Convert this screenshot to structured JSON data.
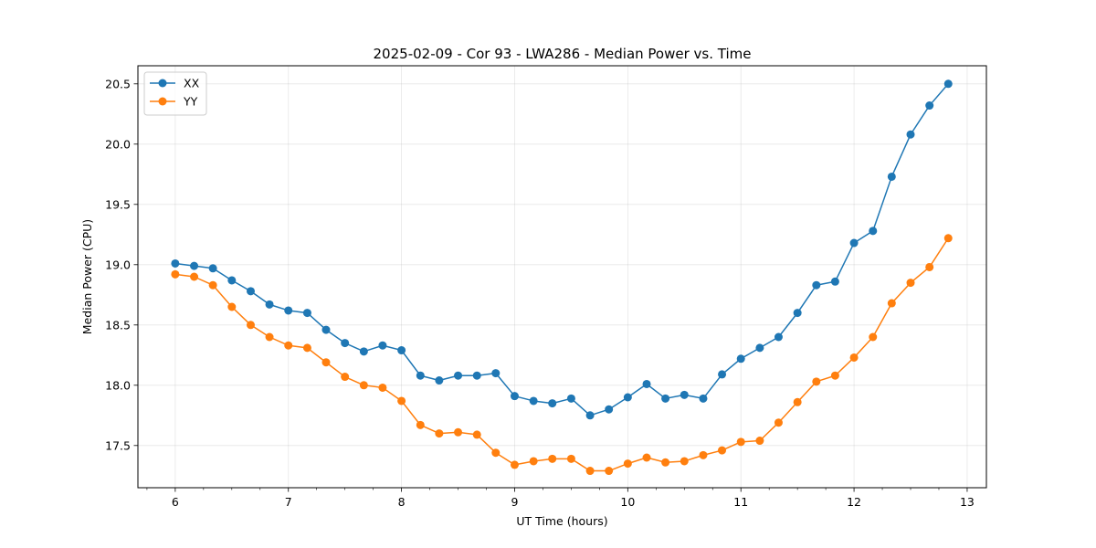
{
  "chart_data": {
    "type": "line",
    "title": "2025-02-09 - Cor 93 - LWA286 - Median Power vs. Time",
    "xlabel": "UT Time (hours)",
    "ylabel": "Median Power (CPU)",
    "xlim": [
      5.67,
      13.17
    ],
    "ylim": [
      17.15,
      20.65
    ],
    "xticks": [
      6,
      7,
      8,
      9,
      10,
      11,
      12,
      13
    ],
    "xtick_labels": [
      "6",
      "7",
      "8",
      "9",
      "10",
      "11",
      "12",
      "13"
    ],
    "yticks": [
      17.5,
      18.0,
      18.5,
      19.0,
      19.5,
      20.0,
      20.5
    ],
    "ytick_labels": [
      "17.5",
      "18.0",
      "18.5",
      "19.0",
      "19.5",
      "20.0",
      "20.5"
    ],
    "grid": true,
    "legend_position": "top-left",
    "x": [
      6.0,
      6.167,
      6.333,
      6.5,
      6.667,
      6.833,
      7.0,
      7.167,
      7.333,
      7.5,
      7.667,
      7.833,
      8.0,
      8.167,
      8.333,
      8.5,
      8.667,
      8.833,
      9.0,
      9.167,
      9.333,
      9.5,
      9.667,
      9.833,
      10.0,
      10.167,
      10.333,
      10.5,
      10.667,
      10.833,
      11.0,
      11.167,
      11.333,
      11.5,
      11.667,
      11.833,
      12.0,
      12.167,
      12.333,
      12.5,
      12.667,
      12.833
    ],
    "series": [
      {
        "name": "XX",
        "color": "#1f77b4",
        "values": [
          19.01,
          18.99,
          18.97,
          18.87,
          18.78,
          18.67,
          18.62,
          18.6,
          18.46,
          18.35,
          18.28,
          18.33,
          18.29,
          18.08,
          18.04,
          18.08,
          18.08,
          18.1,
          17.91,
          17.87,
          17.85,
          17.89,
          17.75,
          17.8,
          17.9,
          18.01,
          17.89,
          17.92,
          17.89,
          18.09,
          18.22,
          18.31,
          18.4,
          18.6,
          18.83,
          18.86,
          19.18,
          19.28,
          19.73,
          20.08,
          20.32,
          20.5
        ]
      },
      {
        "name": "YY",
        "color": "#ff7f0e",
        "values": [
          18.92,
          18.9,
          18.83,
          18.65,
          18.5,
          18.4,
          18.33,
          18.31,
          18.19,
          18.07,
          18.0,
          17.98,
          17.87,
          17.67,
          17.6,
          17.61,
          17.59,
          17.44,
          17.34,
          17.37,
          17.39,
          17.39,
          17.29,
          17.29,
          17.35,
          17.4,
          17.36,
          17.37,
          17.42,
          17.46,
          17.53,
          17.54,
          17.69,
          17.86,
          18.03,
          18.08,
          18.23,
          18.4,
          18.68,
          18.85,
          18.98,
          19.22
        ]
      }
    ]
  }
}
